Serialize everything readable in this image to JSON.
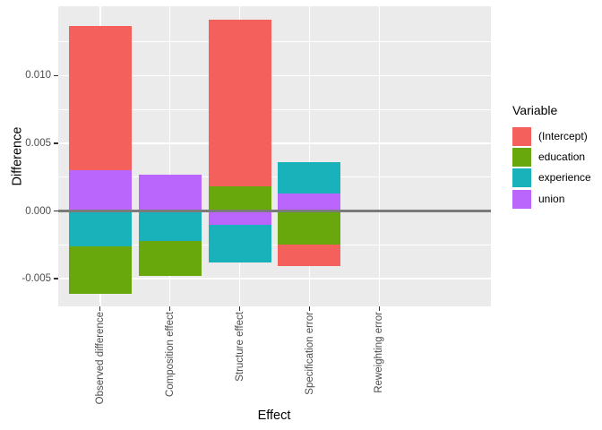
{
  "chart_data": {
    "type": "bar",
    "stacked": true,
    "orientation": "vertical",
    "title": "",
    "xlabel": "Effect",
    "ylabel": "Difference",
    "categories": [
      "Observed difference",
      "Composition effect",
      "Structure effect",
      "Specification error",
      "Reweighting error"
    ],
    "series": [
      {
        "name": "(Intercept)",
        "color": "#F4605C",
        "values": [
          0.0107,
          0,
          0.0123,
          -0.0016,
          0
        ]
      },
      {
        "name": "education",
        "color": "#69A80D",
        "values": [
          -0.0035,
          -0.0026,
          0.0018,
          -0.0025,
          0
        ]
      },
      {
        "name": "experience",
        "color": "#19B2BB",
        "values": [
          -0.0026,
          -0.0022,
          -0.0028,
          0.0023,
          0
        ]
      },
      {
        "name": "union",
        "color": "#BA65FC",
        "values": [
          0.003,
          0.0027,
          -0.001,
          0.0013,
          0
        ]
      }
    ],
    "stack_order": "reversed-series-from-zero",
    "ylim": [
      -0.00705,
      0.01512
    ],
    "yticks": [
      {
        "value": 0.01,
        "label": "0.010"
      },
      {
        "value": 0.005,
        "label": "0.005"
      },
      {
        "value": 0.0,
        "label": "0.000"
      },
      {
        "value": -0.005,
        "label": "-0.005"
      }
    ],
    "yminor": [
      0.0125,
      0.0075,
      0.0025,
      -0.0025
    ],
    "zero_line": true,
    "grid": "major+minor",
    "legend": {
      "title": "Variable",
      "position": "right",
      "entries": [
        "(Intercept)",
        "education",
        "experience",
        "union"
      ]
    },
    "theme": {
      "background": "#FFFFFF",
      "panel_bg": "#EBEBEB",
      "grid_color": "#FFFFFF",
      "zero_line_color": "#7A7A7A",
      "tick_color": "#333333",
      "tick_label_color": "#4D4D4D",
      "axis_title_color": "#000000"
    }
  }
}
